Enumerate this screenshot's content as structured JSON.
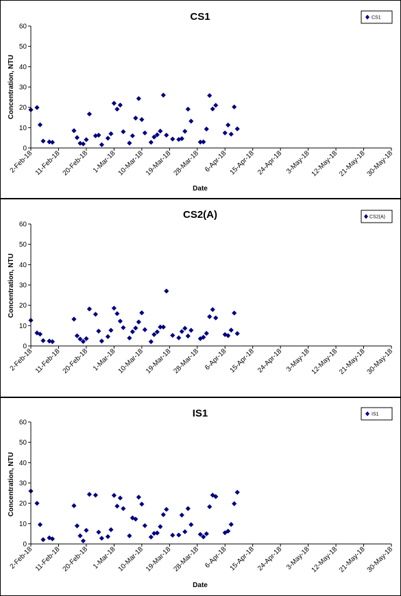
{
  "chart_data": [
    {
      "type": "scatter",
      "title": "CS1",
      "xlabel": "Date",
      "ylabel": "Concentration, NTU",
      "ylim": [
        0,
        60
      ],
      "yticks": [
        0,
        10,
        20,
        30,
        40,
        50,
        60
      ],
      "xlim": [
        "2018-02-02",
        "2018-05-30"
      ],
      "xtick_dates": [
        "2018-02-02",
        "2018-02-11",
        "2018-02-20",
        "2018-03-01",
        "2018-03-10",
        "2018-03-19",
        "2018-03-28",
        "2018-04-06",
        "2018-04-15",
        "2018-04-24",
        "2018-05-03",
        "2018-05-12",
        "2018-05-21",
        "2018-05-30"
      ],
      "xtick_labels": [
        "2-Feb-18",
        "11-Feb-18",
        "20-Feb-18",
        "1-Mar-18",
        "10-Mar-18",
        "19-Mar-18",
        "28-Mar-18",
        "6-Apr-18",
        "15-Apr-18",
        "24-Apr-18",
        "3-May-18",
        "12-May-18",
        "21-May-18",
        "30-May-18"
      ],
      "grid": false,
      "legend": "top-right",
      "series": [
        {
          "name": "CS1",
          "color": "#000080",
          "marker": "diamond",
          "points": [
            [
              "2018-02-02",
              18.8
            ],
            [
              "2018-02-04",
              19.9
            ],
            [
              "2018-02-05",
              11.4
            ],
            [
              "2018-02-06",
              3.4
            ],
            [
              "2018-02-08",
              3.0
            ],
            [
              "2018-02-09",
              2.8
            ],
            [
              "2018-02-16",
              8.5
            ],
            [
              "2018-02-17",
              5.1
            ],
            [
              "2018-02-18",
              2.3
            ],
            [
              "2018-02-19",
              2.0
            ],
            [
              "2018-02-20",
              4.1
            ],
            [
              "2018-02-21",
              16.7
            ],
            [
              "2018-02-23",
              6.0
            ],
            [
              "2018-02-24",
              6.3
            ],
            [
              "2018-02-25",
              1.6
            ],
            [
              "2018-02-27",
              4.8
            ],
            [
              "2018-02-28",
              7.0
            ],
            [
              "2018-03-01",
              22.0
            ],
            [
              "2018-03-02",
              19.1
            ],
            [
              "2018-03-03",
              21.1
            ],
            [
              "2018-03-04",
              8.0
            ],
            [
              "2018-03-06",
              2.4
            ],
            [
              "2018-03-07",
              6.0
            ],
            [
              "2018-03-08",
              14.7
            ],
            [
              "2018-03-09",
              24.3
            ],
            [
              "2018-03-10",
              14.0
            ],
            [
              "2018-03-11",
              7.4
            ],
            [
              "2018-03-13",
              2.8
            ],
            [
              "2018-03-14",
              5.4
            ],
            [
              "2018-03-15",
              6.5
            ],
            [
              "2018-03-16",
              8.3
            ],
            [
              "2018-03-17",
              26.0
            ],
            [
              "2018-03-18",
              6.3
            ],
            [
              "2018-03-20",
              4.4
            ],
            [
              "2018-03-22",
              4.2
            ],
            [
              "2018-03-23",
              4.6
            ],
            [
              "2018-03-24",
              8.2
            ],
            [
              "2018-03-25",
              19.1
            ],
            [
              "2018-03-26",
              13.2
            ],
            [
              "2018-03-29",
              2.9
            ],
            [
              "2018-03-30",
              3.0
            ],
            [
              "2018-03-31",
              9.3
            ],
            [
              "2018-04-01",
              25.8
            ],
            [
              "2018-04-02",
              19.2
            ],
            [
              "2018-04-03",
              21.0
            ],
            [
              "2018-04-06",
              7.4
            ],
            [
              "2018-04-07",
              11.3
            ],
            [
              "2018-04-08",
              6.8
            ],
            [
              "2018-04-09",
              20.2
            ],
            [
              "2018-04-10",
              9.4
            ]
          ]
        }
      ]
    },
    {
      "type": "scatter",
      "title": "CS2(A)",
      "xlabel": "",
      "ylabel": "Concentration, NTU",
      "ylim": [
        0,
        60
      ],
      "yticks": [
        0,
        10,
        20,
        30,
        40,
        50,
        60
      ],
      "xlim": [
        "2018-02-02",
        "2018-05-30"
      ],
      "xtick_dates": [
        "2018-02-02",
        "2018-02-11",
        "2018-02-20",
        "2018-03-01",
        "2018-03-10",
        "2018-03-19",
        "2018-03-28",
        "2018-04-06",
        "2018-04-15",
        "2018-04-24",
        "2018-05-03",
        "2018-05-12",
        "2018-05-21",
        "2018-05-30"
      ],
      "xtick_labels": [
        "2-Feb-18",
        "11-Feb-18",
        "20-Feb-18",
        "1-Mar-18",
        "10-Mar-18",
        "19-Mar-18",
        "28-Mar-18",
        "6-Apr-18",
        "15-Apr-18",
        "24-Apr-18",
        "3-May-18",
        "12-May-18",
        "21-May-18",
        "30-May-18"
      ],
      "grid": false,
      "legend": "top-right",
      "series": [
        {
          "name": "CS2(A)",
          "color": "#000080",
          "marker": "diamond",
          "points": [
            [
              "2018-02-02",
              12.6
            ],
            [
              "2018-02-04",
              6.4
            ],
            [
              "2018-02-05",
              5.8
            ],
            [
              "2018-02-06",
              2.6
            ],
            [
              "2018-02-08",
              2.4
            ],
            [
              "2018-02-09",
              2.1
            ],
            [
              "2018-02-16",
              13.2
            ],
            [
              "2018-02-17",
              5.0
            ],
            [
              "2018-02-18",
              3.4
            ],
            [
              "2018-02-19",
              2.2
            ],
            [
              "2018-02-20",
              3.6
            ],
            [
              "2018-02-21",
              18.2
            ],
            [
              "2018-02-23",
              15.6
            ],
            [
              "2018-02-24",
              7.3
            ],
            [
              "2018-02-25",
              2.4
            ],
            [
              "2018-02-27",
              4.6
            ],
            [
              "2018-02-28",
              7.7
            ],
            [
              "2018-03-01",
              18.6
            ],
            [
              "2018-03-02",
              15.9
            ],
            [
              "2018-03-03",
              12.2
            ],
            [
              "2018-03-04",
              9.0
            ],
            [
              "2018-03-06",
              3.9
            ],
            [
              "2018-03-07",
              7.0
            ],
            [
              "2018-03-08",
              8.8
            ],
            [
              "2018-03-09",
              11.8
            ],
            [
              "2018-03-10",
              16.3
            ],
            [
              "2018-03-11",
              8.0
            ],
            [
              "2018-03-13",
              2.1
            ],
            [
              "2018-03-14",
              5.6
            ],
            [
              "2018-03-15",
              6.9
            ],
            [
              "2018-03-16",
              9.3
            ],
            [
              "2018-03-17",
              9.3
            ],
            [
              "2018-03-18",
              27.0
            ],
            [
              "2018-03-20",
              5.2
            ],
            [
              "2018-03-22",
              4.0
            ],
            [
              "2018-03-23",
              7.1
            ],
            [
              "2018-03-24",
              8.7
            ],
            [
              "2018-03-25",
              4.9
            ],
            [
              "2018-03-26",
              7.7
            ],
            [
              "2018-03-29",
              3.6
            ],
            [
              "2018-03-30",
              4.3
            ],
            [
              "2018-03-31",
              6.2
            ],
            [
              "2018-04-01",
              14.4
            ],
            [
              "2018-04-02",
              17.9
            ],
            [
              "2018-04-03",
              13.8
            ],
            [
              "2018-04-06",
              5.6
            ],
            [
              "2018-04-07",
              5.1
            ],
            [
              "2018-04-08",
              7.8
            ],
            [
              "2018-04-09",
              16.2
            ],
            [
              "2018-04-10",
              6.1
            ]
          ]
        }
      ]
    },
    {
      "type": "scatter",
      "title": "IS1",
      "xlabel": "Date",
      "ylabel": "Concentration, NTU",
      "ylim": [
        0,
        60
      ],
      "yticks": [
        0,
        10,
        20,
        30,
        40,
        50,
        60
      ],
      "xlim": [
        "2018-02-02",
        "2018-05-30"
      ],
      "xtick_dates": [
        "2018-02-02",
        "2018-02-11",
        "2018-02-20",
        "2018-03-01",
        "2018-03-10",
        "2018-03-19",
        "2018-03-28",
        "2018-04-06",
        "2018-04-15",
        "2018-04-24",
        "2018-05-03",
        "2018-05-12",
        "2018-05-21",
        "2018-05-30"
      ],
      "xtick_labels": [
        "2-Feb-18",
        "11-Feb-18",
        "20-Feb-18",
        "1-Mar-18",
        "10-Mar-18",
        "19-Mar-18",
        "28-Mar-18",
        "6-Apr-18",
        "15-Apr-18",
        "24-Apr-18",
        "3-May-18",
        "12-May-18",
        "21-May-18",
        "30-May-18"
      ],
      "grid": false,
      "legend": "top-right",
      "series": [
        {
          "name": "IS1",
          "color": "#000080",
          "marker": "diamond",
          "points": [
            [
              "2018-02-02",
              26.0
            ],
            [
              "2018-02-04",
              20.0
            ],
            [
              "2018-02-05",
              9.5
            ],
            [
              "2018-02-06",
              2.1
            ],
            [
              "2018-02-08",
              3.0
            ],
            [
              "2018-02-09",
              2.5
            ],
            [
              "2018-02-16",
              18.8
            ],
            [
              "2018-02-17",
              8.9
            ],
            [
              "2018-02-18",
              4.0
            ],
            [
              "2018-02-19",
              1.5
            ],
            [
              "2018-02-20",
              6.7
            ],
            [
              "2018-02-21",
              24.4
            ],
            [
              "2018-02-23",
              24.0
            ],
            [
              "2018-02-24",
              5.8
            ],
            [
              "2018-02-25",
              2.8
            ],
            [
              "2018-02-27",
              3.6
            ],
            [
              "2018-02-28",
              7.0
            ],
            [
              "2018-03-01",
              23.9
            ],
            [
              "2018-03-02",
              18.6
            ],
            [
              "2018-03-03",
              22.6
            ],
            [
              "2018-03-04",
              17.4
            ],
            [
              "2018-03-06",
              4.0
            ],
            [
              "2018-03-07",
              12.8
            ],
            [
              "2018-03-08",
              12.2
            ],
            [
              "2018-03-09",
              23.0
            ],
            [
              "2018-03-10",
              19.6
            ],
            [
              "2018-03-11",
              9.0
            ],
            [
              "2018-03-13",
              3.4
            ],
            [
              "2018-03-14",
              5.2
            ],
            [
              "2018-03-15",
              5.4
            ],
            [
              "2018-03-16",
              8.5
            ],
            [
              "2018-03-17",
              14.4
            ],
            [
              "2018-03-18",
              17.0
            ],
            [
              "2018-03-20",
              4.3
            ],
            [
              "2018-03-22",
              4.4
            ],
            [
              "2018-03-23",
              14.2
            ],
            [
              "2018-03-24",
              6.0
            ],
            [
              "2018-03-25",
              17.4
            ],
            [
              "2018-03-26",
              9.5
            ],
            [
              "2018-03-29",
              4.7
            ],
            [
              "2018-03-30",
              3.5
            ],
            [
              "2018-03-31",
              5.0
            ],
            [
              "2018-04-01",
              18.3
            ],
            [
              "2018-04-02",
              24.0
            ],
            [
              "2018-04-03",
              23.3
            ],
            [
              "2018-04-06",
              5.5
            ],
            [
              "2018-04-07",
              6.3
            ],
            [
              "2018-04-08",
              9.6
            ],
            [
              "2018-04-09",
              19.8
            ],
            [
              "2018-04-10",
              25.4
            ]
          ]
        }
      ]
    }
  ]
}
